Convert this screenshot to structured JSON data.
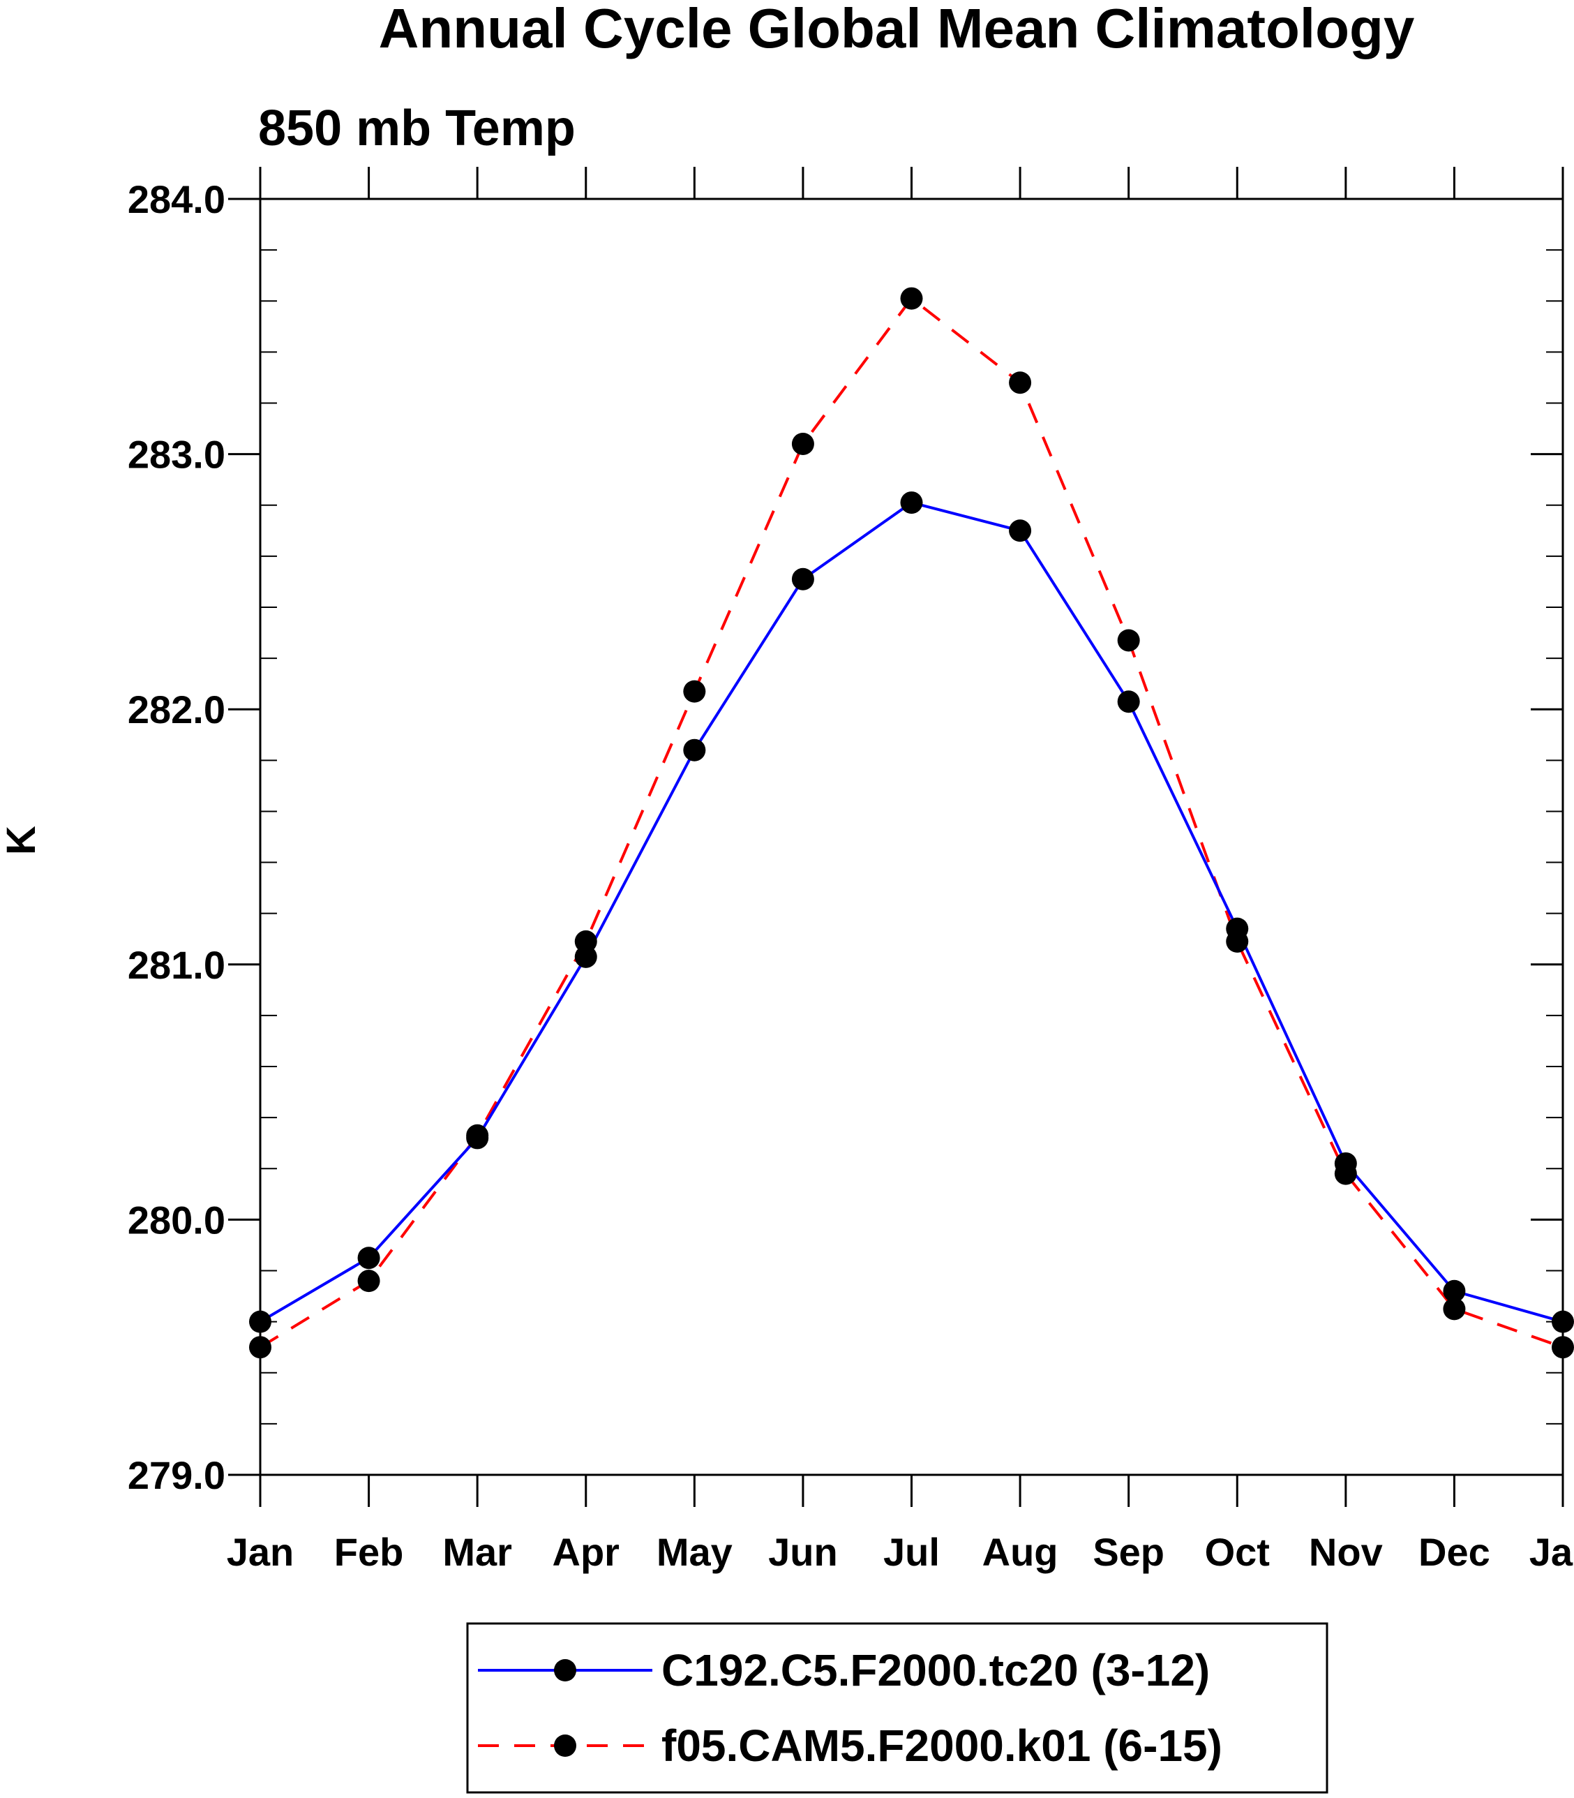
{
  "chart_data": {
    "type": "line",
    "title": "Annual Cycle Global Mean Climatology",
    "subtitle": "850 mb Temp",
    "xlabel": "",
    "ylabel": "K",
    "categories": [
      "Jan",
      "Feb",
      "Mar",
      "Apr",
      "May",
      "Jun",
      "Jul",
      "Aug",
      "Sep",
      "Oct",
      "Nov",
      "Dec",
      "Jan"
    ],
    "ylim": [
      279.0,
      284.0
    ],
    "yticks": [
      279.0,
      280.0,
      281.0,
      282.0,
      283.0,
      284.0
    ],
    "ytick_labels": [
      "279.0",
      "280.0",
      "281.0",
      "282.0",
      "283.0",
      "284.0"
    ],
    "y_minor_step": 0.2,
    "legend_position": "bottom",
    "series": [
      {
        "name": "C192.C5.F2000.tc20 (3-12)",
        "color": "#0000ff",
        "line_style": "solid",
        "marker": "filled-circle",
        "marker_color": "#000000",
        "values": [
          279.6,
          279.85,
          280.32,
          281.03,
          281.84,
          282.51,
          282.81,
          282.7,
          282.03,
          281.14,
          280.22,
          279.72,
          279.6
        ]
      },
      {
        "name": "f05.CAM5.F2000.k01 (6-15)",
        "color": "#ff0000",
        "line_style": "dashed",
        "marker": "filled-circle",
        "marker_color": "#000000",
        "values": [
          279.5,
          279.76,
          280.33,
          281.09,
          282.07,
          283.04,
          283.61,
          283.28,
          282.27,
          281.09,
          280.18,
          279.65,
          279.5
        ]
      }
    ]
  }
}
